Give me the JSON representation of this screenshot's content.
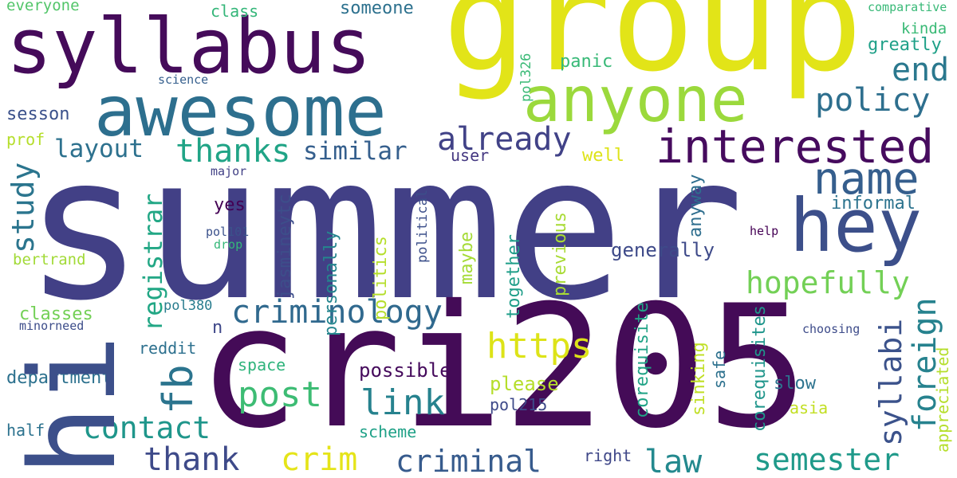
{
  "words": [
    {
      "text": "summer",
      "color": "#424086"
    },
    {
      "text": "cri205",
      "color": "#440b57"
    },
    {
      "text": "group",
      "color": "#e2e418"
    },
    {
      "text": "syllabus",
      "color": "#450b5a"
    },
    {
      "text": "awesome",
      "color": "#2d6f8e"
    },
    {
      "text": "hi",
      "color": "#3c4f8a"
    },
    {
      "text": "anyone",
      "color": "#9bd93c"
    },
    {
      "text": "hey",
      "color": "#3c4f8a"
    },
    {
      "text": "interested",
      "color": "#460b5e"
    },
    {
      "text": "name",
      "color": "#355e8d"
    },
    {
      "text": "policy",
      "color": "#2e6f8e"
    },
    {
      "text": "end",
      "color": "#2a788e"
    },
    {
      "text": "already",
      "color": "#414287"
    },
    {
      "text": "thanks",
      "color": "#20a486"
    },
    {
      "text": "layout",
      "color": "#2d718e"
    },
    {
      "text": "similar",
      "color": "#355f8d"
    },
    {
      "text": "study",
      "color": "#2b758e"
    },
    {
      "text": "registrar",
      "color": "#22a785"
    },
    {
      "text": "criminology",
      "color": "#30698e"
    },
    {
      "text": "hopefully",
      "color": "#73d056"
    },
    {
      "text": "foreign",
      "color": "#26828e"
    },
    {
      "text": "syllabi",
      "color": "#3b528b"
    },
    {
      "text": "fb",
      "color": "#2b748e"
    },
    {
      "text": "https",
      "color": "#dde318"
    },
    {
      "text": "post",
      "color": "#3dbc74"
    },
    {
      "text": "link",
      "color": "#26828e"
    },
    {
      "text": "contact",
      "color": "#1f968b"
    },
    {
      "text": "thank",
      "color": "#3e4a89"
    },
    {
      "text": "crim",
      "color": "#e5e419"
    },
    {
      "text": "criminal",
      "color": "#375b8d"
    },
    {
      "text": "law",
      "color": "#23898e"
    },
    {
      "text": "semester",
      "color": "#1f9a8a"
    },
    {
      "text": "generally",
      "color": "#3e4a89"
    },
    {
      "text": "informal",
      "color": "#2c738e"
    },
    {
      "text": "possible",
      "color": "#450a5c"
    },
    {
      "text": "please",
      "color": "#b5de2b"
    },
    {
      "text": "space",
      "color": "#2fb47c"
    },
    {
      "text": "reddit",
      "color": "#2d708e"
    },
    {
      "text": "department",
      "color": "#2c718e"
    },
    {
      "text": "classes",
      "color": "#73d056"
    },
    {
      "text": "bertrand",
      "color": "#a2da37"
    },
    {
      "text": "prof",
      "color": "#b5de2b"
    },
    {
      "text": "sesson",
      "color": "#3b518b"
    },
    {
      "text": "class",
      "color": "#34b679"
    },
    {
      "text": "someone",
      "color": "#2d718e"
    },
    {
      "text": "everyone",
      "color": "#52c569"
    },
    {
      "text": "comparative",
      "color": "#38b977"
    },
    {
      "text": "kinda",
      "color": "#3aba76"
    },
    {
      "text": "greatly",
      "color": "#1fa088"
    },
    {
      "text": "panic",
      "color": "#38b977"
    },
    {
      "text": "pol326",
      "color": "#3aba76"
    },
    {
      "text": "science",
      "color": "#355f8d"
    },
    {
      "text": "user",
      "color": "#453882"
    },
    {
      "text": "well",
      "color": "#dde318"
    },
    {
      "text": "major",
      "color": "#424186"
    },
    {
      "text": "yes",
      "color": "#440154"
    },
    {
      "text": "pol101",
      "color": "#3b528b"
    },
    {
      "text": "drop",
      "color": "#35b779"
    },
    {
      "text": "pol380",
      "color": "#287c8e"
    },
    {
      "text": "n",
      "color": "#3f4889"
    },
    {
      "text": "minorneed",
      "color": "#3d4d8a"
    },
    {
      "text": "half",
      "color": "#2c728e"
    },
    {
      "text": "scheme",
      "color": "#1fa187"
    },
    {
      "text": "pol215",
      "color": "#3e4a89"
    },
    {
      "text": "right",
      "color": "#3f4788"
    },
    {
      "text": "help",
      "color": "#440154"
    },
    {
      "text": "choosing",
      "color": "#3e4c8a"
    },
    {
      "text": "slow",
      "color": "#2c738e"
    },
    {
      "text": "safe",
      "color": "#2d718e"
    },
    {
      "text": "asia",
      "color": "#c2df23"
    },
    {
      "text": "anyway",
      "color": "#2e6e8e"
    },
    {
      "text": "jasmineytc",
      "color": "#3d4e8a"
    },
    {
      "text": "personally",
      "color": "#25858e"
    },
    {
      "text": "political",
      "color": "#3c4f8a"
    },
    {
      "text": "politics",
      "color": "#b5de2b"
    },
    {
      "text": "maybe",
      "color": "#a5db36"
    },
    {
      "text": "together",
      "color": "#1f9e89"
    },
    {
      "text": "previous",
      "color": "#a8db34"
    },
    {
      "text": "corequisite",
      "color": "#20a386"
    },
    {
      "text": "sinking",
      "color": "#c0df25"
    },
    {
      "text": "corequisites",
      "color": "#1f958b"
    },
    {
      "text": "appreciated",
      "color": "#b5de2b"
    }
  ]
}
